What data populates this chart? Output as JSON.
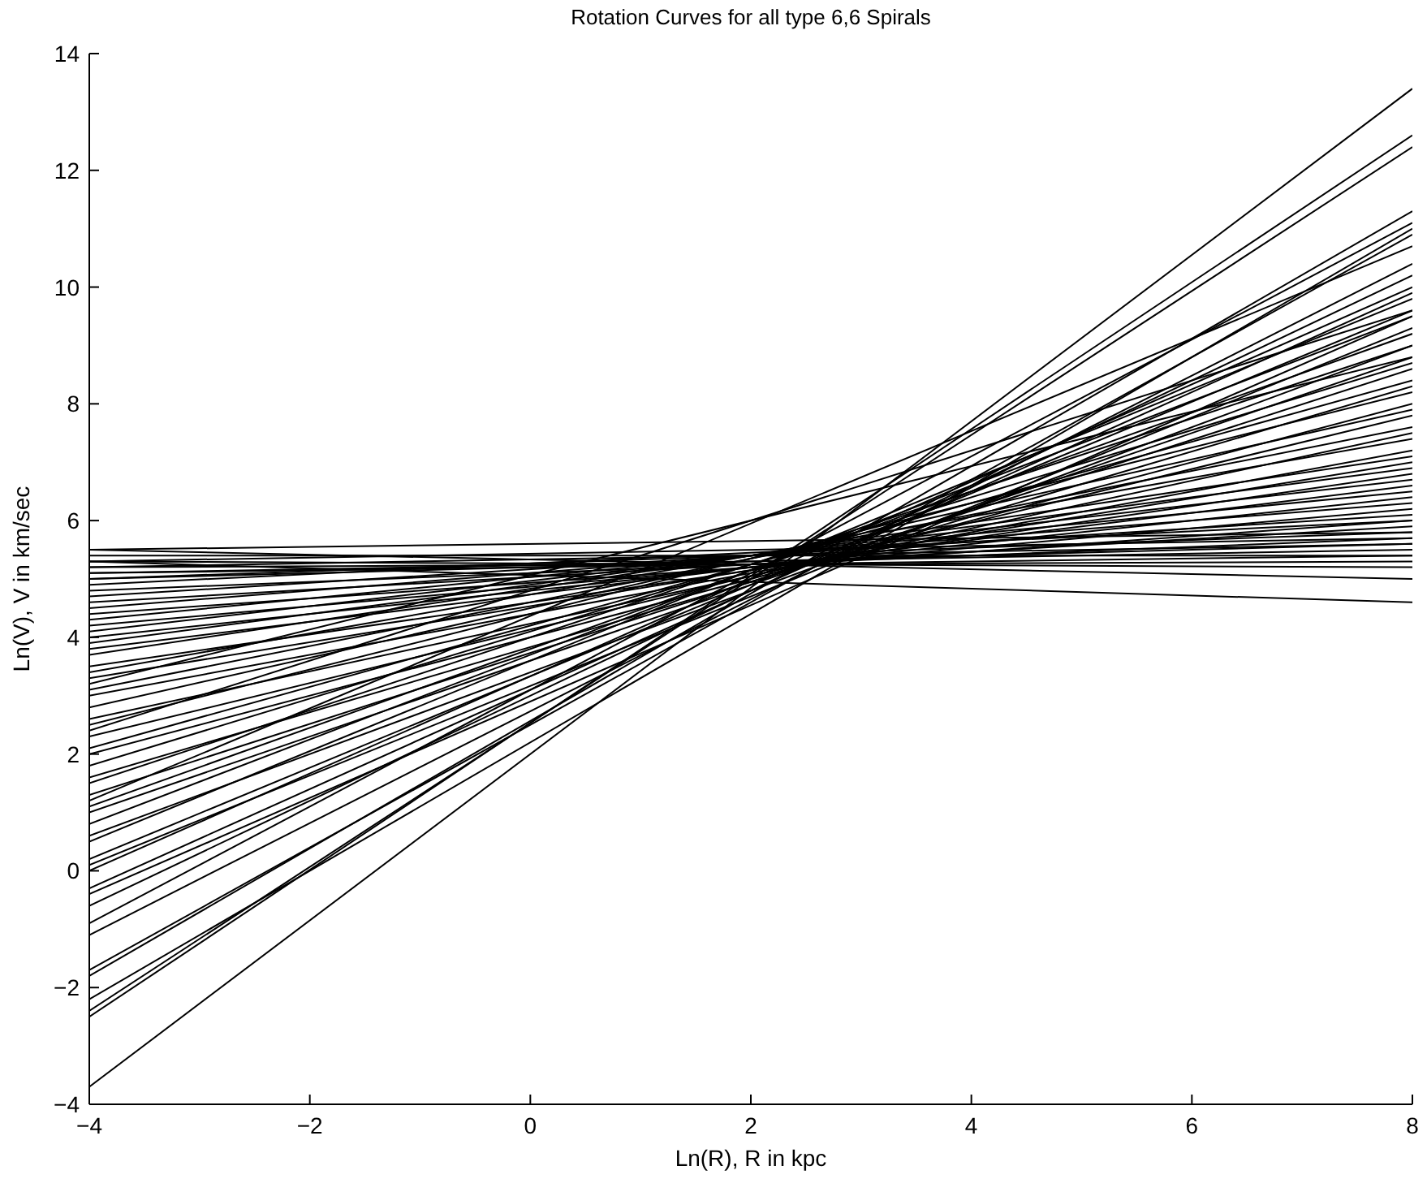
{
  "chart_data": {
    "type": "line",
    "title": "Rotation Curves for all type 6,6 Spirals",
    "xlabel": "Ln(R), R in kpc",
    "ylabel": "Ln(V), V in km/sec",
    "x": [
      -4,
      8
    ],
    "xlim": [
      -4,
      8
    ],
    "ylim": [
      -4,
      14
    ],
    "xticks": [
      -4,
      -2,
      0,
      2,
      4,
      6,
      8
    ],
    "yticks": [
      -4,
      -2,
      0,
      2,
      4,
      6,
      8,
      10,
      12,
      14
    ],
    "marker": "none",
    "line_style": "solid",
    "grid": false,
    "series": [
      {
        "color": "#000000",
        "values": [
          -3.7,
          13.4
        ]
      },
      {
        "color": "#000000",
        "values": [
          -2.5,
          12.6
        ]
      },
      {
        "color": "#000000",
        "values": [
          -2.4,
          12.4
        ]
      },
      {
        "color": "#000000",
        "values": [
          -2.2,
          11.0
        ]
      },
      {
        "color": "#000000",
        "values": [
          -1.8,
          11.3
        ]
      },
      {
        "color": "#000000",
        "values": [
          -1.7,
          10.9
        ]
      },
      {
        "color": "#000000",
        "values": [
          -1.1,
          10.4
        ]
      },
      {
        "color": "#000000",
        "values": [
          -0.9,
          11.1
        ]
      },
      {
        "color": "#000000",
        "values": [
          -0.6,
          10.2
        ]
      },
      {
        "color": "#000000",
        "values": [
          -0.4,
          9.5
        ]
      },
      {
        "color": "#000000",
        "values": [
          -0.3,
          9.9
        ]
      },
      {
        "color": "#000000",
        "values": [
          0,
          10.0
        ]
      },
      {
        "color": "#000000",
        "values": [
          0.2,
          9.6
        ]
      },
      {
        "color": "#000000",
        "values": [
          0.1,
          9.3
        ]
      },
      {
        "color": "#000000",
        "values": [
          0.5,
          9.8
        ]
      },
      {
        "color": "#000000",
        "values": [
          0.6,
          9.0
        ]
      },
      {
        "color": "#000000",
        "values": [
          0.8,
          9.5
        ]
      },
      {
        "color": "#000000",
        "values": [
          1.0,
          8.8
        ]
      },
      {
        "color": "#000000",
        "values": [
          1.1,
          9.2
        ]
      },
      {
        "color": "#000000",
        "values": [
          1.2,
          10.7
        ]
      },
      {
        "color": "#000000",
        "values": [
          1.3,
          8.6
        ]
      },
      {
        "color": "#000000",
        "values": [
          1.5,
          9.0
        ]
      },
      {
        "color": "#000000",
        "values": [
          1.6,
          8.3
        ]
      },
      {
        "color": "#000000",
        "values": [
          1.8,
          8.7
        ]
      },
      {
        "color": "#000000",
        "values": [
          2.0,
          8.0
        ]
      },
      {
        "color": "#000000",
        "values": [
          2.1,
          8.4
        ]
      },
      {
        "color": "#000000",
        "values": [
          2.3,
          7.8
        ]
      },
      {
        "color": "#000000",
        "values": [
          2.4,
          9.6
        ]
      },
      {
        "color": "#000000",
        "values": [
          2.5,
          8.2
        ]
      },
      {
        "color": "#000000",
        "values": [
          2.6,
          7.5
        ]
      },
      {
        "color": "#000000",
        "values": [
          2.8,
          7.9
        ]
      },
      {
        "color": "#000000",
        "values": [
          3.0,
          7.2
        ]
      },
      {
        "color": "#000000",
        "values": [
          3.1,
          7.6
        ]
      },
      {
        "color": "#000000",
        "values": [
          3.2,
          8.8
        ]
      },
      {
        "color": "#000000",
        "values": [
          3.3,
          7.0
        ]
      },
      {
        "color": "#000000",
        "values": [
          3.4,
          7.4
        ]
      },
      {
        "color": "#000000",
        "values": [
          3.5,
          6.8
        ]
      },
      {
        "color": "#000000",
        "values": [
          3.7,
          7.1
        ]
      },
      {
        "color": "#000000",
        "values": [
          3.8,
          6.6
        ]
      },
      {
        "color": "#000000",
        "values": [
          3.9,
          6.9
        ]
      },
      {
        "color": "#000000",
        "values": [
          4.0,
          6.4
        ]
      },
      {
        "color": "#000000",
        "values": [
          4.1,
          6.7
        ]
      },
      {
        "color": "#000000",
        "values": [
          4.2,
          6.2
        ]
      },
      {
        "color": "#000000",
        "values": [
          4.3,
          6.5
        ]
      },
      {
        "color": "#000000",
        "values": [
          4.4,
          6.0
        ]
      },
      {
        "color": "#000000",
        "values": [
          4.5,
          6.3
        ]
      },
      {
        "color": "#000000",
        "values": [
          4.6,
          5.9
        ]
      },
      {
        "color": "#000000",
        "values": [
          4.7,
          6.1
        ]
      },
      {
        "color": "#000000",
        "values": [
          4.8,
          5.7
        ]
      },
      {
        "color": "#000000",
        "values": [
          4.9,
          6.0
        ]
      },
      {
        "color": "#000000",
        "values": [
          5.0,
          5.6
        ]
      },
      {
        "color": "#000000",
        "values": [
          5.0,
          5.8
        ]
      },
      {
        "color": "#000000",
        "values": [
          5.1,
          5.5
        ]
      },
      {
        "color": "#000000",
        "values": [
          5.1,
          5.4
        ]
      },
      {
        "color": "#000000",
        "values": [
          5.2,
          5.3
        ]
      },
      {
        "color": "#000000",
        "values": [
          5.2,
          5.6
        ]
      },
      {
        "color": "#000000",
        "values": [
          5.3,
          5.2
        ]
      },
      {
        "color": "#000000",
        "values": [
          5.3,
          5.7
        ]
      },
      {
        "color": "#000000",
        "values": [
          5.4,
          5.4
        ]
      },
      {
        "color": "#000000",
        "values": [
          5.5,
          5.8
        ]
      },
      {
        "color": "#000000",
        "values": [
          5.5,
          5.0
        ]
      },
      {
        "color": "#000000",
        "values": [
          5.3,
          4.6
        ]
      }
    ]
  }
}
